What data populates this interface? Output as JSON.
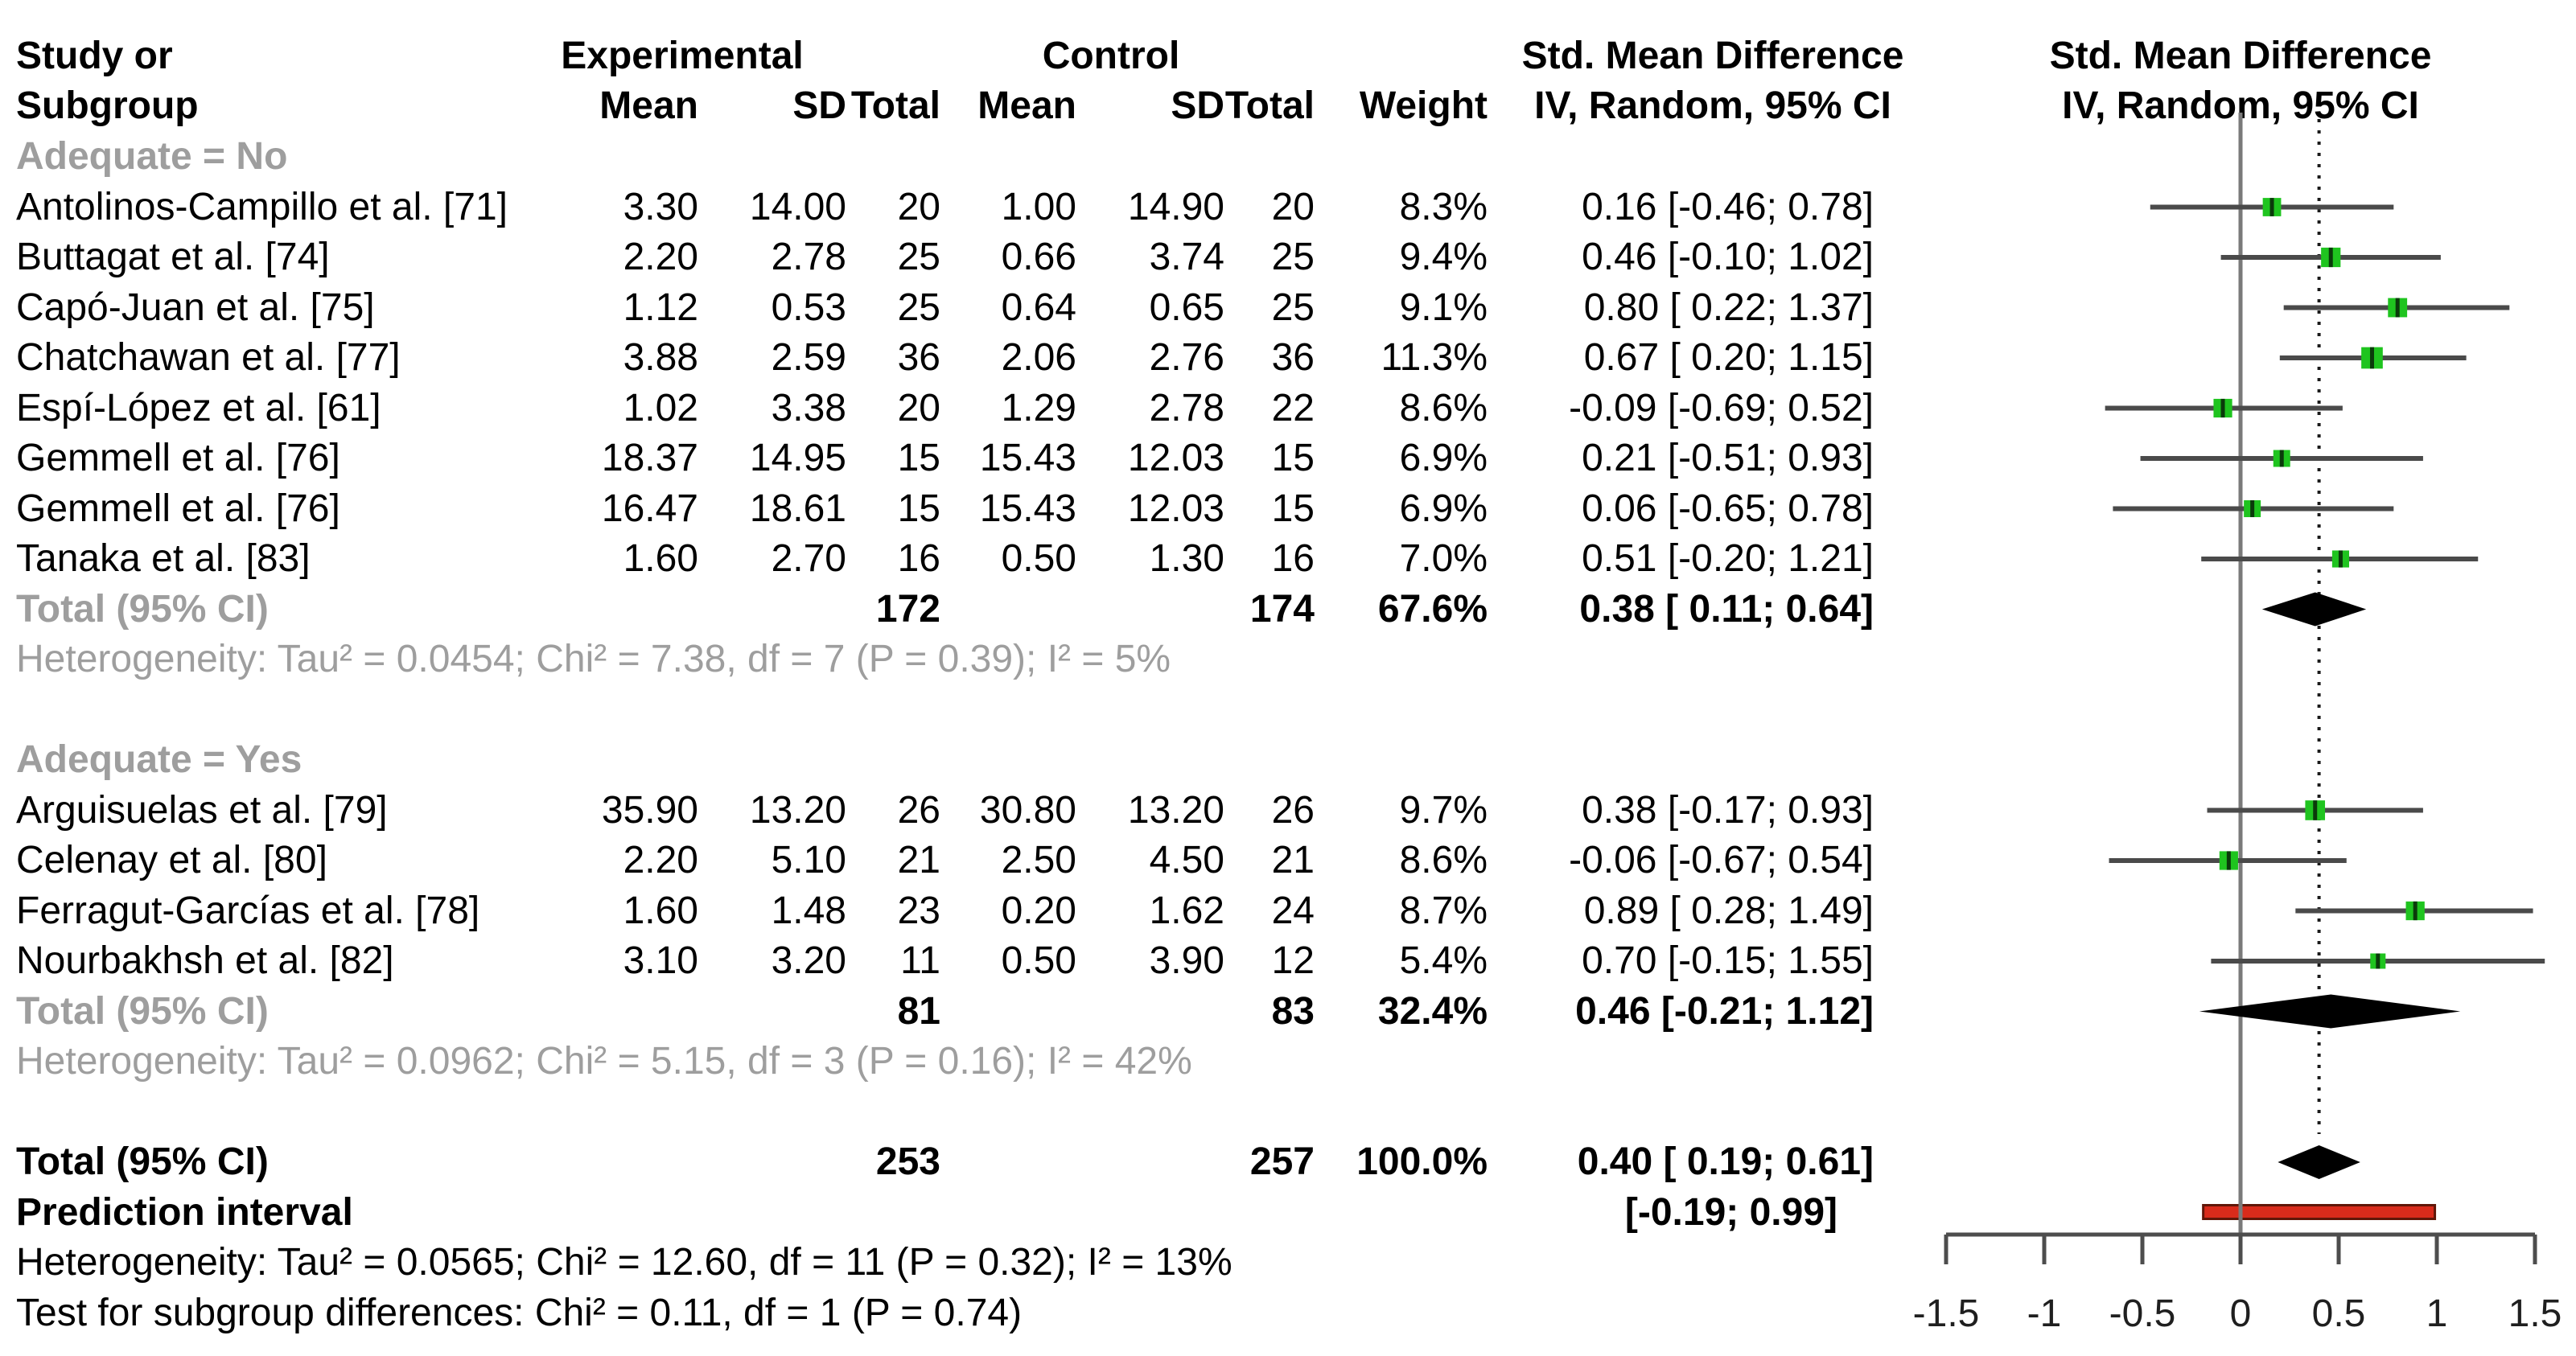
{
  "header": {
    "study_line1": "Study or",
    "study_line2": "Subgroup",
    "experimental": "Experimental",
    "control": "Control",
    "mean": "Mean",
    "sd": "SD",
    "total": "Total",
    "weight": "Weight",
    "smd_title": "Std. Mean Difference",
    "smd_sub": "IV, Random, 95% CI"
  },
  "rows": [
    {
      "kind": "subgroup",
      "label": "Adequate = No"
    },
    {
      "kind": "study",
      "label": "Antolinos-Campillo et al. [71]",
      "exp_mean": "3.30",
      "exp_sd": "14.00",
      "exp_total": "20",
      "ctrl_mean": "1.00",
      "ctrl_sd": "14.90",
      "ctrl_total": "20",
      "weight": "8.3%",
      "smd": "0.16 [-0.46; 0.78]"
    },
    {
      "kind": "study",
      "label": "Buttagat et al. [74]",
      "exp_mean": "2.20",
      "exp_sd": "2.78",
      "exp_total": "25",
      "ctrl_mean": "0.66",
      "ctrl_sd": "3.74",
      "ctrl_total": "25",
      "weight": "9.4%",
      "smd": "0.46 [-0.10; 1.02]"
    },
    {
      "kind": "study",
      "label": "Capó-Juan et al. [75]",
      "exp_mean": "1.12",
      "exp_sd": "0.53",
      "exp_total": "25",
      "ctrl_mean": "0.64",
      "ctrl_sd": "0.65",
      "ctrl_total": "25",
      "weight": "9.1%",
      "smd": "0.80 [ 0.22; 1.37]"
    },
    {
      "kind": "study",
      "label": "Chatchawan et al. [77]",
      "exp_mean": "3.88",
      "exp_sd": "2.59",
      "exp_total": "36",
      "ctrl_mean": "2.06",
      "ctrl_sd": "2.76",
      "ctrl_total": "36",
      "weight": "11.3%",
      "smd": "0.67 [ 0.20; 1.15]"
    },
    {
      "kind": "study",
      "label": "Espí-López et al. [61]",
      "exp_mean": "1.02",
      "exp_sd": "3.38",
      "exp_total": "20",
      "ctrl_mean": "1.29",
      "ctrl_sd": "2.78",
      "ctrl_total": "22",
      "weight": "8.6%",
      "smd": "-0.09 [-0.69; 0.52]"
    },
    {
      "kind": "study",
      "label": "Gemmell et al. [76]",
      "exp_mean": "18.37",
      "exp_sd": "14.95",
      "exp_total": "15",
      "ctrl_mean": "15.43",
      "ctrl_sd": "12.03",
      "ctrl_total": "15",
      "weight": "6.9%",
      "smd": "0.21 [-0.51; 0.93]"
    },
    {
      "kind": "study",
      "label": "Gemmell et al. [76]",
      "exp_mean": "16.47",
      "exp_sd": "18.61",
      "exp_total": "15",
      "ctrl_mean": "15.43",
      "ctrl_sd": "12.03",
      "ctrl_total": "15",
      "weight": "6.9%",
      "smd": "0.06 [-0.65; 0.78]"
    },
    {
      "kind": "study",
      "label": "Tanaka et al. [83]",
      "exp_mean": "1.60",
      "exp_sd": "2.70",
      "exp_total": "16",
      "ctrl_mean": "0.50",
      "ctrl_sd": "1.30",
      "ctrl_total": "16",
      "weight": "7.0%",
      "smd": "0.51 [-0.20; 1.21]"
    },
    {
      "kind": "subtotal",
      "label": "Total (95% CI)",
      "exp_total": "172",
      "ctrl_total": "174",
      "weight": "67.6%",
      "smd": "0.38 [ 0.11; 0.64]"
    },
    {
      "kind": "note",
      "label": "Heterogeneity: Tau² = 0.0454; Chi² = 7.38, df = 7 (P = 0.39); I² = 5%"
    },
    {
      "kind": "blank"
    },
    {
      "kind": "subgroup",
      "label": "Adequate = Yes"
    },
    {
      "kind": "study",
      "label": "Arguisuelas et al. [79]",
      "exp_mean": "35.90",
      "exp_sd": "13.20",
      "exp_total": "26",
      "ctrl_mean": "30.80",
      "ctrl_sd": "13.20",
      "ctrl_total": "26",
      "weight": "9.7%",
      "smd": "0.38 [-0.17; 0.93]"
    },
    {
      "kind": "study",
      "label": "Celenay et al. [80]",
      "exp_mean": "2.20",
      "exp_sd": "5.10",
      "exp_total": "21",
      "ctrl_mean": "2.50",
      "ctrl_sd": "4.50",
      "ctrl_total": "21",
      "weight": "8.6%",
      "smd": "-0.06 [-0.67; 0.54]"
    },
    {
      "kind": "study",
      "label": "Ferragut-Garcías et al. [78]",
      "exp_mean": "1.60",
      "exp_sd": "1.48",
      "exp_total": "23",
      "ctrl_mean": "0.20",
      "ctrl_sd": "1.62",
      "ctrl_total": "24",
      "weight": "8.7%",
      "smd": "0.89 [ 0.28; 1.49]"
    },
    {
      "kind": "study",
      "label": "Nourbakhsh et al. [82]",
      "exp_mean": "3.10",
      "exp_sd": "3.20",
      "exp_total": "11",
      "ctrl_mean": "0.50",
      "ctrl_sd": "3.90",
      "ctrl_total": "12",
      "weight": "5.4%",
      "smd": "0.70 [-0.15; 1.55]"
    },
    {
      "kind": "subtotal",
      "label": "Total (95% CI)",
      "exp_total": "81",
      "ctrl_total": "83",
      "weight": "32.4%",
      "smd": "0.46 [-0.21; 1.12]"
    },
    {
      "kind": "note",
      "label": "Heterogeneity: Tau² = 0.0962; Chi² = 5.15, df = 3 (P = 0.16); I² = 42%"
    },
    {
      "kind": "blank"
    },
    {
      "kind": "total",
      "label": "Total (95% CI)",
      "exp_total": "253",
      "ctrl_total": "257",
      "weight": "100.0%",
      "smd": "0.40 [ 0.19; 0.61]"
    },
    {
      "kind": "prediction",
      "label": "Prediction interval",
      "smd": "[-0.19; 0.99]"
    },
    {
      "kind": "noteblack",
      "label": "Heterogeneity: Tau² = 0.0565; Chi² = 12.60, df = 11 (P = 0.32); I² = 13%"
    },
    {
      "kind": "noteblack",
      "label": "Test for subgroup differences: Chi² = 0.11, df = 1 (P = 0.74)"
    }
  ],
  "chart_data": {
    "type": "forest",
    "title": "Std. Mean Difference",
    "subtitle": "IV, Random, 95% CI",
    "axis": {
      "xlim": [
        -1.5,
        1.5
      ],
      "ticks": [
        -1.5,
        -1,
        -0.5,
        0,
        0.5,
        1,
        1.5
      ],
      "tick_labels": [
        "-1.5",
        "-1",
        "-0.5",
        "0",
        "0.5",
        "1",
        "1.5"
      ],
      "zero_line": 0,
      "overall_effect_dashed_line": 0.4
    },
    "studies": [
      {
        "row": 1,
        "label": "Antolinos-Campillo et al. [71]",
        "est": 0.16,
        "lo": -0.46,
        "hi": 0.78,
        "weight_pct": 8.3
      },
      {
        "row": 2,
        "label": "Buttagat et al. [74]",
        "est": 0.46,
        "lo": -0.1,
        "hi": 1.02,
        "weight_pct": 9.4
      },
      {
        "row": 3,
        "label": "Capó-Juan et al. [75]",
        "est": 0.8,
        "lo": 0.22,
        "hi": 1.37,
        "weight_pct": 9.1
      },
      {
        "row": 4,
        "label": "Chatchawan et al. [77]",
        "est": 0.67,
        "lo": 0.2,
        "hi": 1.15,
        "weight_pct": 11.3
      },
      {
        "row": 5,
        "label": "Espí-López et al. [61]",
        "est": -0.09,
        "lo": -0.69,
        "hi": 0.52,
        "weight_pct": 8.6
      },
      {
        "row": 6,
        "label": "Gemmell et al. [76]",
        "est": 0.21,
        "lo": -0.51,
        "hi": 0.93,
        "weight_pct": 6.9
      },
      {
        "row": 7,
        "label": "Gemmell et al. [76]",
        "est": 0.06,
        "lo": -0.65,
        "hi": 0.78,
        "weight_pct": 6.9
      },
      {
        "row": 8,
        "label": "Tanaka et al. [83]",
        "est": 0.51,
        "lo": -0.2,
        "hi": 1.21,
        "weight_pct": 7.0
      },
      {
        "row": 13,
        "label": "Arguisuelas et al. [79]",
        "est": 0.38,
        "lo": -0.17,
        "hi": 0.93,
        "weight_pct": 9.7
      },
      {
        "row": 14,
        "label": "Celenay et al. [80]",
        "est": -0.06,
        "lo": -0.67,
        "hi": 0.54,
        "weight_pct": 8.6
      },
      {
        "row": 15,
        "label": "Ferragut-Garcías et al. [78]",
        "est": 0.89,
        "lo": 0.28,
        "hi": 1.49,
        "weight_pct": 8.7
      },
      {
        "row": 16,
        "label": "Nourbakhsh et al. [82]",
        "est": 0.7,
        "lo": -0.15,
        "hi": 1.55,
        "weight_pct": 5.4
      }
    ],
    "diamonds": [
      {
        "row": 9,
        "label": "Adequate = No — Total (95% CI)",
        "est": 0.38,
        "lo": 0.11,
        "hi": 0.64,
        "weight_pct": 67.6
      },
      {
        "row": 17,
        "label": "Adequate = Yes — Total (95% CI)",
        "est": 0.46,
        "lo": -0.21,
        "hi": 1.12,
        "weight_pct": 32.4
      },
      {
        "row": 20,
        "label": "Overall — Total (95% CI)",
        "est": 0.4,
        "lo": 0.19,
        "hi": 0.61,
        "weight_pct": 100.0
      }
    ],
    "prediction_interval": {
      "row": 21,
      "lo": -0.19,
      "hi": 0.99
    },
    "colors": {
      "square": "#1fc41f",
      "square_center": "#0b3a0b",
      "ci_line": "#4a4a4a",
      "diamond": "#000000",
      "prediction_bar": "#d92b1b",
      "prediction_border": "#601608",
      "zero_line": "#7a7a7a",
      "dashed_line": "#1a1a1a",
      "axis": "#4d4d4d",
      "tick_label": "#1f1f1f",
      "subgroup_text": "#9e9e9e"
    }
  }
}
